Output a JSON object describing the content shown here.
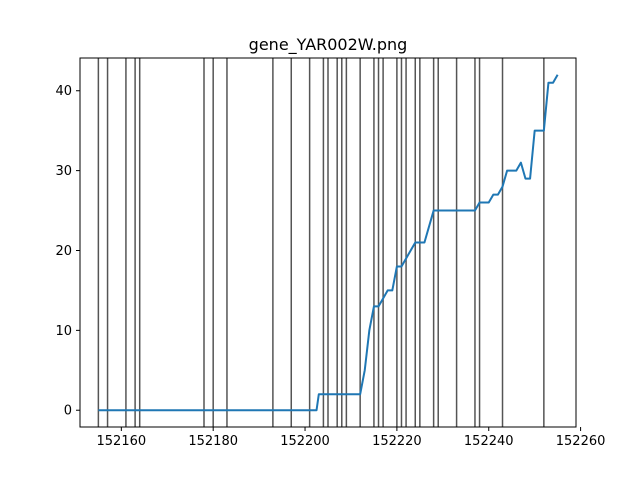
{
  "chart_data": {
    "type": "line",
    "title": "gene_YAR002W.png",
    "xlabel": "",
    "ylabel": "",
    "xlim": [
      152151,
      152259
    ],
    "ylim": [
      -2.1,
      44.1
    ],
    "xticks": [
      152160,
      152180,
      152200,
      152220,
      152240,
      152260
    ],
    "yticks": [
      0,
      10,
      20,
      30,
      40
    ],
    "grid": false,
    "line_color": "#1f77b4",
    "vline_color": "#555555",
    "vlines": [
      152155,
      152157,
      152161,
      152163,
      152164,
      152178,
      152180,
      152183,
      152193,
      152197,
      152201,
      152204,
      152205,
      152207,
      152208,
      152209,
      152212,
      152215,
      152216,
      152217,
      152220,
      152221,
      152222,
      152224,
      152225,
      152228,
      152229,
      152233,
      152237,
      152238,
      152243,
      152252
    ],
    "series": [
      {
        "x": [
          152155,
          152202.5,
          152203,
          152212,
          152213,
          152214,
          152215,
          152216,
          152218,
          152219,
          152220,
          152221,
          152224,
          152226,
          152228,
          152237,
          152238,
          152240,
          152241,
          152242,
          152243,
          152244,
          152246,
          152247,
          152248,
          152249,
          152250,
          152252,
          152253,
          152254,
          152255
        ],
        "y": [
          0,
          0,
          2,
          2,
          5,
          10,
          13,
          13,
          15,
          15,
          18,
          18,
          21,
          21,
          25,
          25,
          26,
          26,
          27,
          27,
          28,
          30,
          30,
          31,
          29,
          29,
          35,
          35,
          41,
          41,
          42
        ]
      }
    ]
  }
}
